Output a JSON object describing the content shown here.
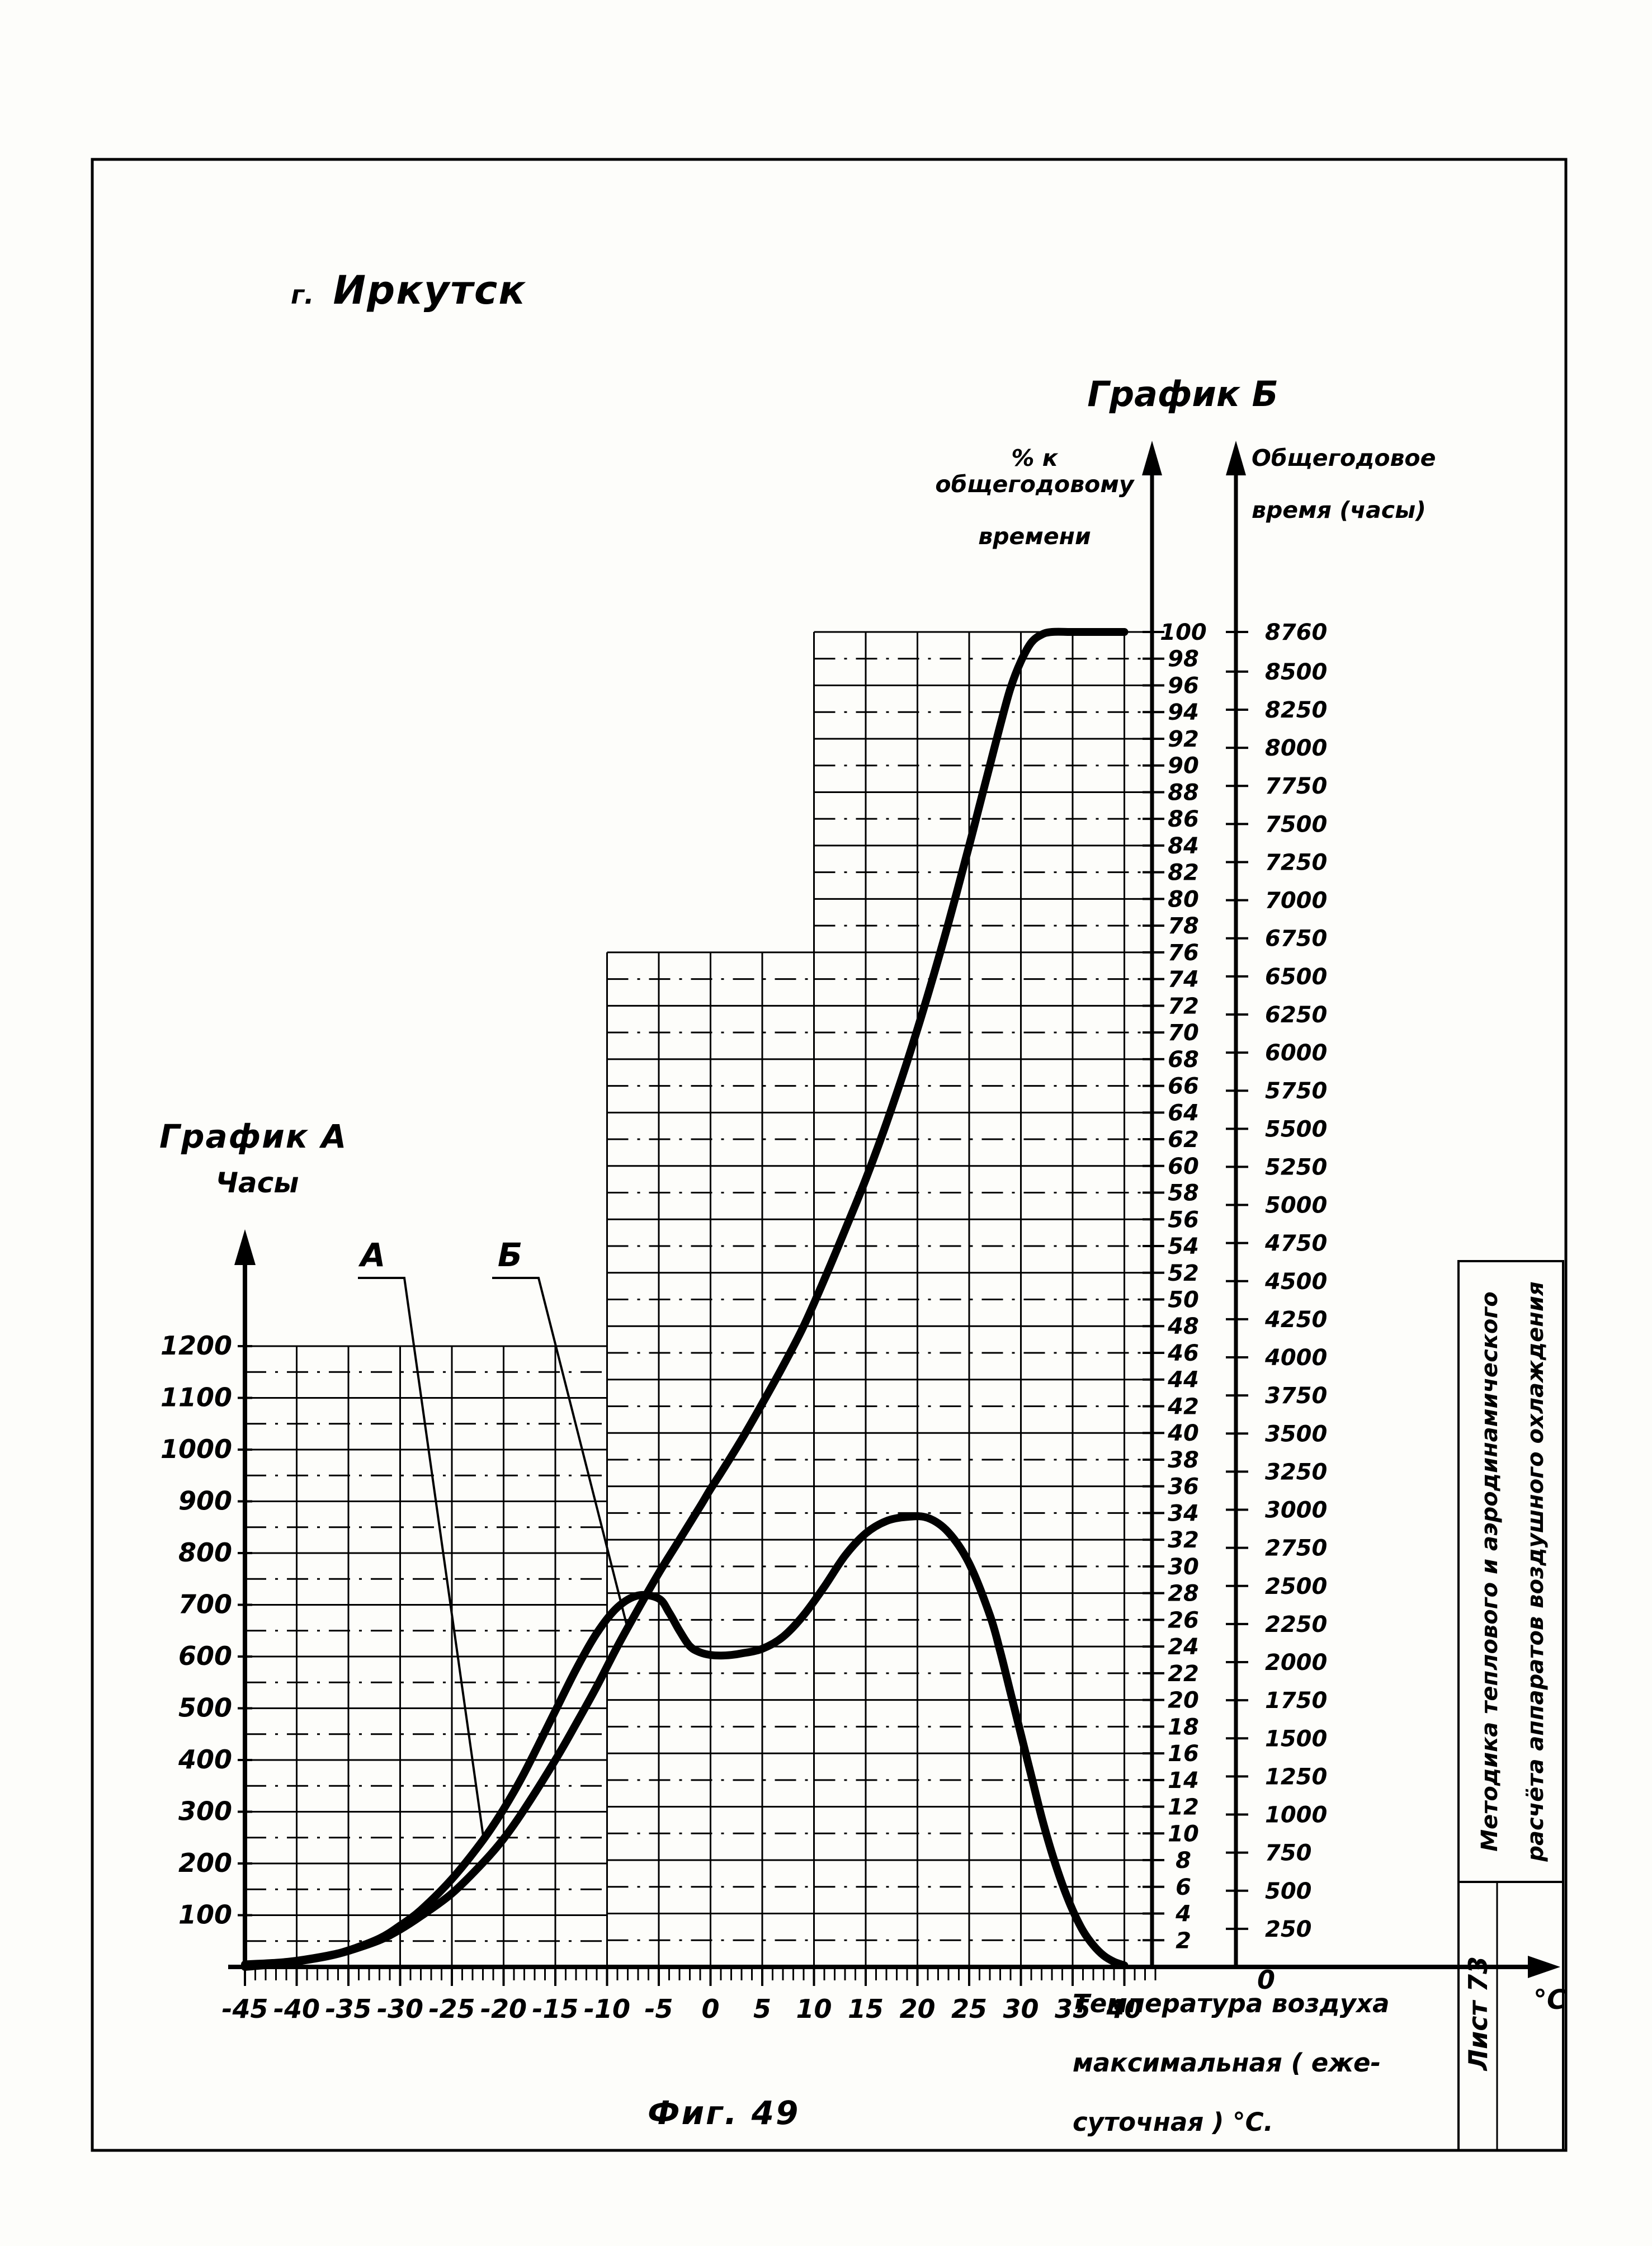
{
  "page": {
    "city_prefix": "г.",
    "city_name": "Иркутск",
    "figure_caption": "Фиг. 49",
    "stamp": {
      "line1": "Методика  теплового  и  аэродинамического",
      "line2": "расчёта  аппаратов  воздушного  охлаждения",
      "sheet_label": "Лист 73"
    }
  },
  "chart_data": {
    "type": "line",
    "title_a": "График А",
    "title_b": "График Б",
    "series_labels": [
      "А",
      "Б"
    ],
    "axes": {
      "x": {
        "label_lines": [
          "Температура  воздуха",
          "максимальная ( еже-",
          "суточная )  °С."
        ],
        "unit": "°C",
        "min": -45,
        "max": 40,
        "tick_step": 5,
        "minor_tick_step": 1,
        "ticks": [
          -45,
          -40,
          -35,
          -30,
          -25,
          -20,
          -15,
          -10,
          -5,
          0,
          5,
          10,
          15,
          20,
          25,
          30,
          35,
          40
        ]
      },
      "left_hours": {
        "label": "Часы",
        "min": 0,
        "max": 1200,
        "tick_step": 100,
        "ticks": [
          100,
          200,
          300,
          400,
          500,
          600,
          700,
          800,
          900,
          1000,
          1100,
          1200
        ]
      },
      "percent": {
        "label_lines": [
          "% к общегодовому",
          "времени"
        ],
        "min": 0,
        "max": 100,
        "tick_step": 2,
        "ticks": [
          2,
          4,
          6,
          8,
          10,
          12,
          14,
          16,
          18,
          20,
          22,
          24,
          26,
          28,
          30,
          32,
          34,
          36,
          38,
          40,
          42,
          44,
          46,
          48,
          50,
          52,
          54,
          56,
          58,
          60,
          62,
          64,
          66,
          68,
          70,
          72,
          74,
          76,
          78,
          80,
          82,
          84,
          86,
          88,
          90,
          92,
          94,
          96,
          98,
          100
        ]
      },
      "annual_hours": {
        "label_lines": [
          "Общегодовое",
          "время (часы)"
        ],
        "min": 0,
        "max": 8760,
        "tick_step": 250,
        "ticks": [
          0,
          250,
          500,
          750,
          1000,
          1250,
          1500,
          1750,
          2000,
          2250,
          2500,
          2750,
          3000,
          3250,
          3500,
          3750,
          4000,
          4250,
          4500,
          4750,
          5000,
          5250,
          5500,
          5750,
          6000,
          6250,
          6500,
          6750,
          7000,
          7250,
          7500,
          7750,
          8000,
          8250,
          8500,
          8760
        ]
      }
    },
    "grid_tiers": [
      {
        "x_from": -45,
        "x_to": -10,
        "top_left_hours": 1200
      },
      {
        "x_from": -10,
        "x_to": 10,
        "top_percent": 76
      },
      {
        "x_from": 10,
        "x_to": 40,
        "top_percent": 100
      }
    ],
    "series": [
      {
        "name": "А",
        "axis": "left_hours",
        "points": [
          [
            -45,
            5
          ],
          [
            -42,
            8
          ],
          [
            -40,
            12
          ],
          [
            -37,
            22
          ],
          [
            -35,
            32
          ],
          [
            -32,
            55
          ],
          [
            -30,
            80
          ],
          [
            -28,
            110
          ],
          [
            -25,
            170
          ],
          [
            -22,
            245
          ],
          [
            -20,
            305
          ],
          [
            -18,
            375
          ],
          [
            -15,
            495
          ],
          [
            -13,
            575
          ],
          [
            -11,
            645
          ],
          [
            -9,
            695
          ],
          [
            -7,
            718
          ],
          [
            -5,
            712
          ],
          [
            -4,
            685
          ],
          [
            -3,
            650
          ],
          [
            -2,
            620
          ],
          [
            -1,
            608
          ],
          [
            0,
            603
          ],
          [
            1,
            602
          ],
          [
            2,
            603
          ],
          [
            3,
            606
          ],
          [
            5,
            615
          ],
          [
            7,
            638
          ],
          [
            9,
            680
          ],
          [
            11,
            735
          ],
          [
            13,
            795
          ],
          [
            15,
            838
          ],
          [
            17,
            862
          ],
          [
            19,
            870
          ],
          [
            21,
            868
          ],
          [
            23,
            840
          ],
          [
            25,
            780
          ],
          [
            27,
            680
          ],
          [
            28,
            610
          ],
          [
            29,
            530
          ],
          [
            30,
            450
          ],
          [
            31,
            370
          ],
          [
            32,
            290
          ],
          [
            33,
            220
          ],
          [
            34,
            160
          ],
          [
            35,
            110
          ],
          [
            36,
            70
          ],
          [
            37,
            42
          ],
          [
            38,
            22
          ],
          [
            39,
            10
          ],
          [
            40,
            3
          ]
        ]
      },
      {
        "name": "Б",
        "axis": "percent",
        "points": [
          [
            -45,
            0
          ],
          [
            -42,
            0.2
          ],
          [
            -40,
            0.4
          ],
          [
            -37,
            0.8
          ],
          [
            -35,
            1.2
          ],
          [
            -32,
            2
          ],
          [
            -30,
            2.8
          ],
          [
            -28,
            3.8
          ],
          [
            -25,
            5.5
          ],
          [
            -22,
            7.8
          ],
          [
            -20,
            9.6
          ],
          [
            -18,
            11.8
          ],
          [
            -15,
            15.5
          ],
          [
            -13,
            18.2
          ],
          [
            -11,
            21
          ],
          [
            -9,
            24
          ],
          [
            -7,
            26.8
          ],
          [
            -5,
            29.5
          ],
          [
            -3,
            32
          ],
          [
            -1,
            34.5
          ],
          [
            0,
            35.8
          ],
          [
            1,
            37
          ],
          [
            3,
            39.5
          ],
          [
            5,
            42.2
          ],
          [
            7,
            45
          ],
          [
            9,
            48
          ],
          [
            11,
            51.5
          ],
          [
            13,
            55.2
          ],
          [
            15,
            59
          ],
          [
            17,
            63.2
          ],
          [
            19,
            67.8
          ],
          [
            21,
            72.8
          ],
          [
            23,
            78.2
          ],
          [
            25,
            84
          ],
          [
            26,
            87
          ],
          [
            27,
            90
          ],
          [
            28,
            93
          ],
          [
            29,
            95.8
          ],
          [
            30,
            97.8
          ],
          [
            31,
            99.2
          ],
          [
            32,
            99.8
          ],
          [
            33,
            100
          ],
          [
            35,
            100
          ],
          [
            37,
            100
          ],
          [
            40,
            100
          ]
        ]
      }
    ]
  }
}
